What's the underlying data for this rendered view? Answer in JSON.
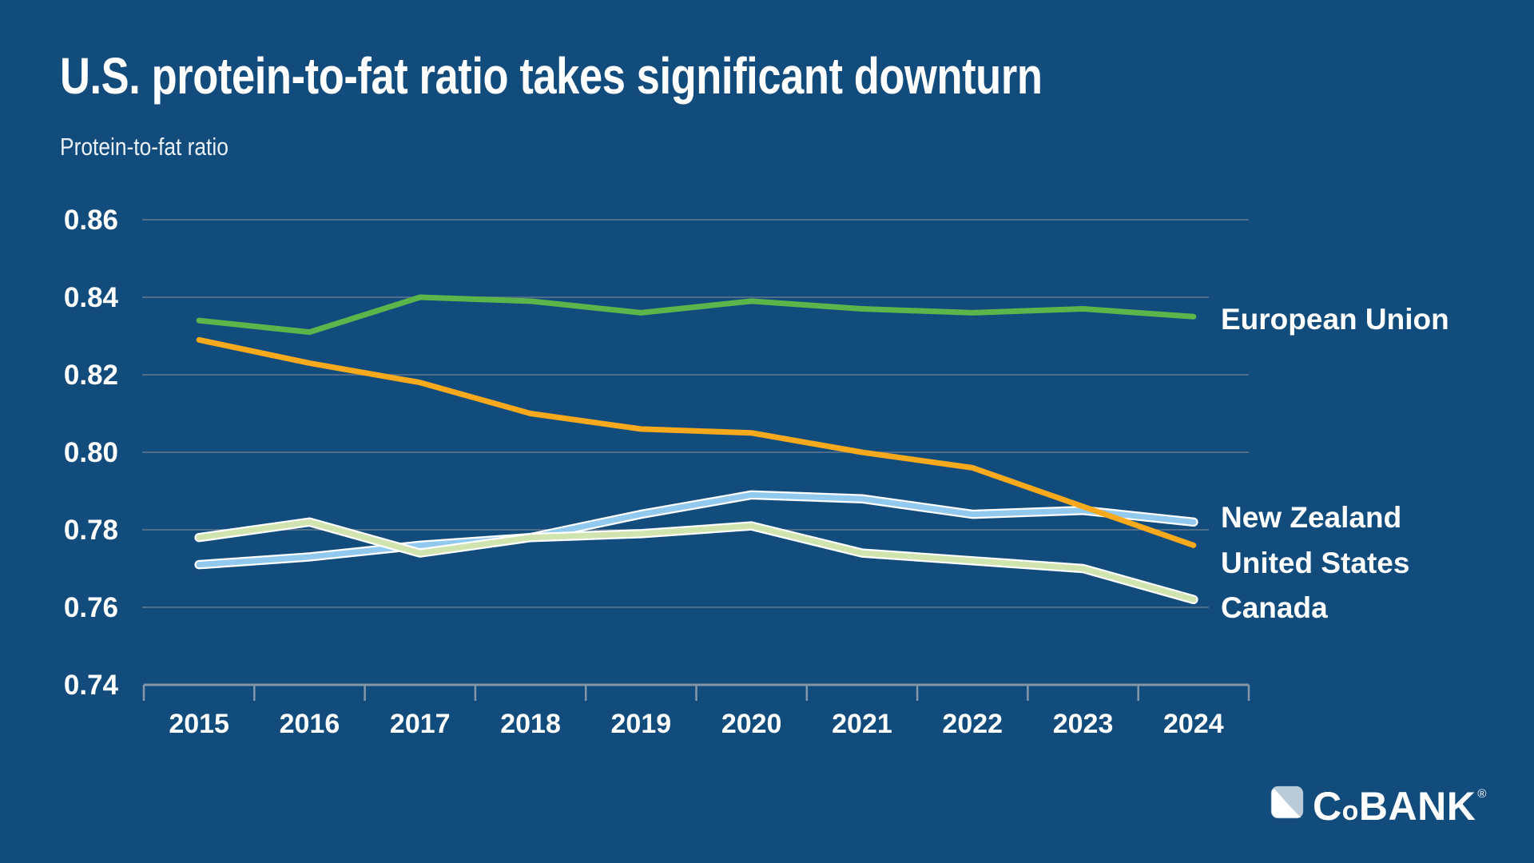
{
  "chart_data": {
    "type": "line",
    "title": "U.S. protein-to-fat ratio takes significant downturn",
    "ylabel": "Protein-to-fat ratio",
    "categories": [
      "2015",
      "2016",
      "2017",
      "2018",
      "2019",
      "2020",
      "2021",
      "2022",
      "2023",
      "2024"
    ],
    "ylim": [
      0.74,
      0.86
    ],
    "y_ticks": {
      "values": [
        0.86,
        0.84,
        0.82,
        0.8,
        0.78,
        0.76,
        0.74
      ],
      "labels": [
        "0.86",
        "0.84",
        "0.82",
        "0.80",
        "0.78",
        "0.76",
        "0.74"
      ]
    },
    "grid": "horizontal",
    "legend_position": "right-end-of-lines",
    "series": [
      {
        "name": "European Union",
        "color": "#5CB54B",
        "values": [
          0.834,
          0.831,
          0.84,
          0.839,
          0.836,
          0.839,
          0.837,
          0.836,
          0.837,
          0.835
        ]
      },
      {
        "name": "New Zealand",
        "color": "#92C9EF",
        "outline": "#FFFFFF",
        "values": [
          0.771,
          0.773,
          0.776,
          0.778,
          0.784,
          0.789,
          0.788,
          0.784,
          0.785,
          0.782
        ]
      },
      {
        "name": "United States",
        "color": "#F9A91C",
        "values": [
          0.829,
          0.823,
          0.818,
          0.81,
          0.806,
          0.805,
          0.8,
          0.796,
          0.786,
          0.776
        ]
      },
      {
        "name": "Canada",
        "color": "#CFE4AF",
        "outline": "#FFFFFF",
        "values": [
          0.778,
          0.782,
          0.774,
          0.778,
          0.779,
          0.781,
          0.774,
          0.772,
          0.77,
          0.762
        ]
      }
    ]
  },
  "colors": {
    "background": "#114C7C",
    "text": "#FFFFFF",
    "gridline": "#4F6D89",
    "axis": "#8397A9",
    "logo_mark_light": "#B9CBD9",
    "logo_mark_white": "#FFFFFF"
  },
  "logo": {
    "part1": "C",
    "part2": "o",
    "part3": "BANK",
    "registered": "®"
  }
}
